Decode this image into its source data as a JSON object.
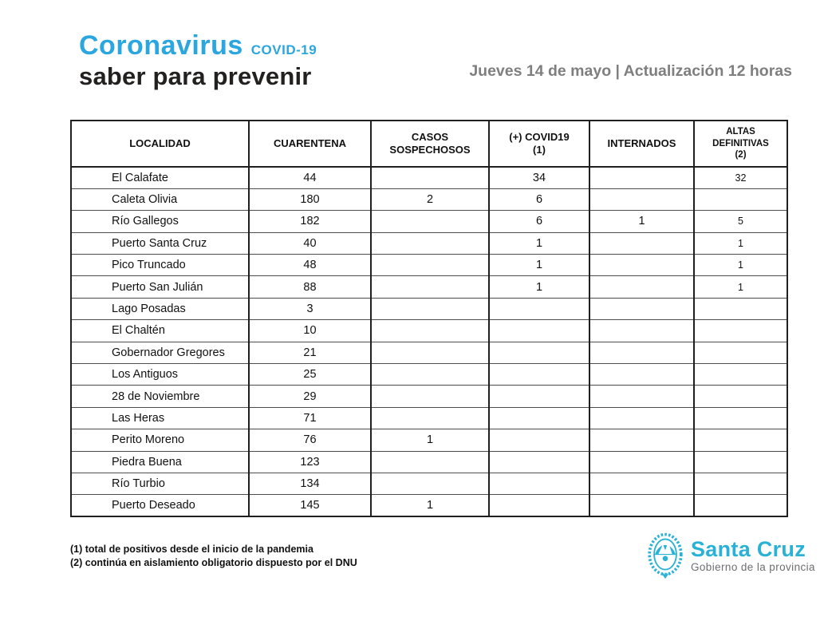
{
  "brand": {
    "title": "Coronavirus",
    "covid_tag": "COVID-19",
    "tagline": "saber para prevenir",
    "accent_color": "#2ba6df"
  },
  "header": {
    "date_line": "Jueves 14 de mayo | Actualización 12 horas"
  },
  "table": {
    "columns": [
      {
        "label": "LOCALIDAD",
        "small": false
      },
      {
        "label": "CUARENTENA",
        "small": false
      },
      {
        "label": "CASOS\nSOSPECHOSOS",
        "small": false
      },
      {
        "label": "(+) COVID19\n(1)",
        "small": false
      },
      {
        "label": "INTERNADOS",
        "small": false
      },
      {
        "label": "ALTAS\nDEFINITIVAS\n(2)",
        "small": true
      }
    ],
    "rows": [
      [
        "El Calafate",
        "44",
        "",
        "34",
        "",
        "32"
      ],
      [
        "Caleta Olivia",
        "180",
        "2",
        "6",
        "",
        ""
      ],
      [
        "Río Gallegos",
        "182",
        "",
        "6",
        "1",
        "5"
      ],
      [
        "Puerto Santa Cruz",
        "40",
        "",
        "1",
        "",
        "1"
      ],
      [
        "Pico Truncado",
        "48",
        "",
        "1",
        "",
        "1"
      ],
      [
        "Puerto San Julián",
        "88",
        "",
        "1",
        "",
        "1"
      ],
      [
        "Lago Posadas",
        "3",
        "",
        "",
        "",
        ""
      ],
      [
        "El Chaltén",
        "10",
        "",
        "",
        "",
        ""
      ],
      [
        "Gobernador Gregores",
        "21",
        "",
        "",
        "",
        ""
      ],
      [
        "Los Antiguos",
        "25",
        "",
        "",
        "",
        ""
      ],
      [
        "28 de Noviembre",
        "29",
        "",
        "",
        "",
        ""
      ],
      [
        "Las Heras",
        "71",
        "",
        "",
        "",
        ""
      ],
      [
        "Perito Moreno",
        "76",
        "1",
        "",
        "",
        ""
      ],
      [
        "Piedra Buena",
        "123",
        "",
        "",
        "",
        ""
      ],
      [
        "Río Turbio",
        "134",
        "",
        "",
        "",
        ""
      ],
      [
        "Puerto Deseado",
        "145",
        "1",
        "",
        "",
        ""
      ]
    ]
  },
  "footnotes": [
    "(1) total de positivos desde el inicio de la pandemia",
    "(2) continúa en aislamiento obligatorio dispuesto por el DNU"
  ],
  "footer_logo": {
    "name": "Santa Cruz",
    "subtitle": "Gobierno de la provincia",
    "color": "#29b2d5"
  }
}
